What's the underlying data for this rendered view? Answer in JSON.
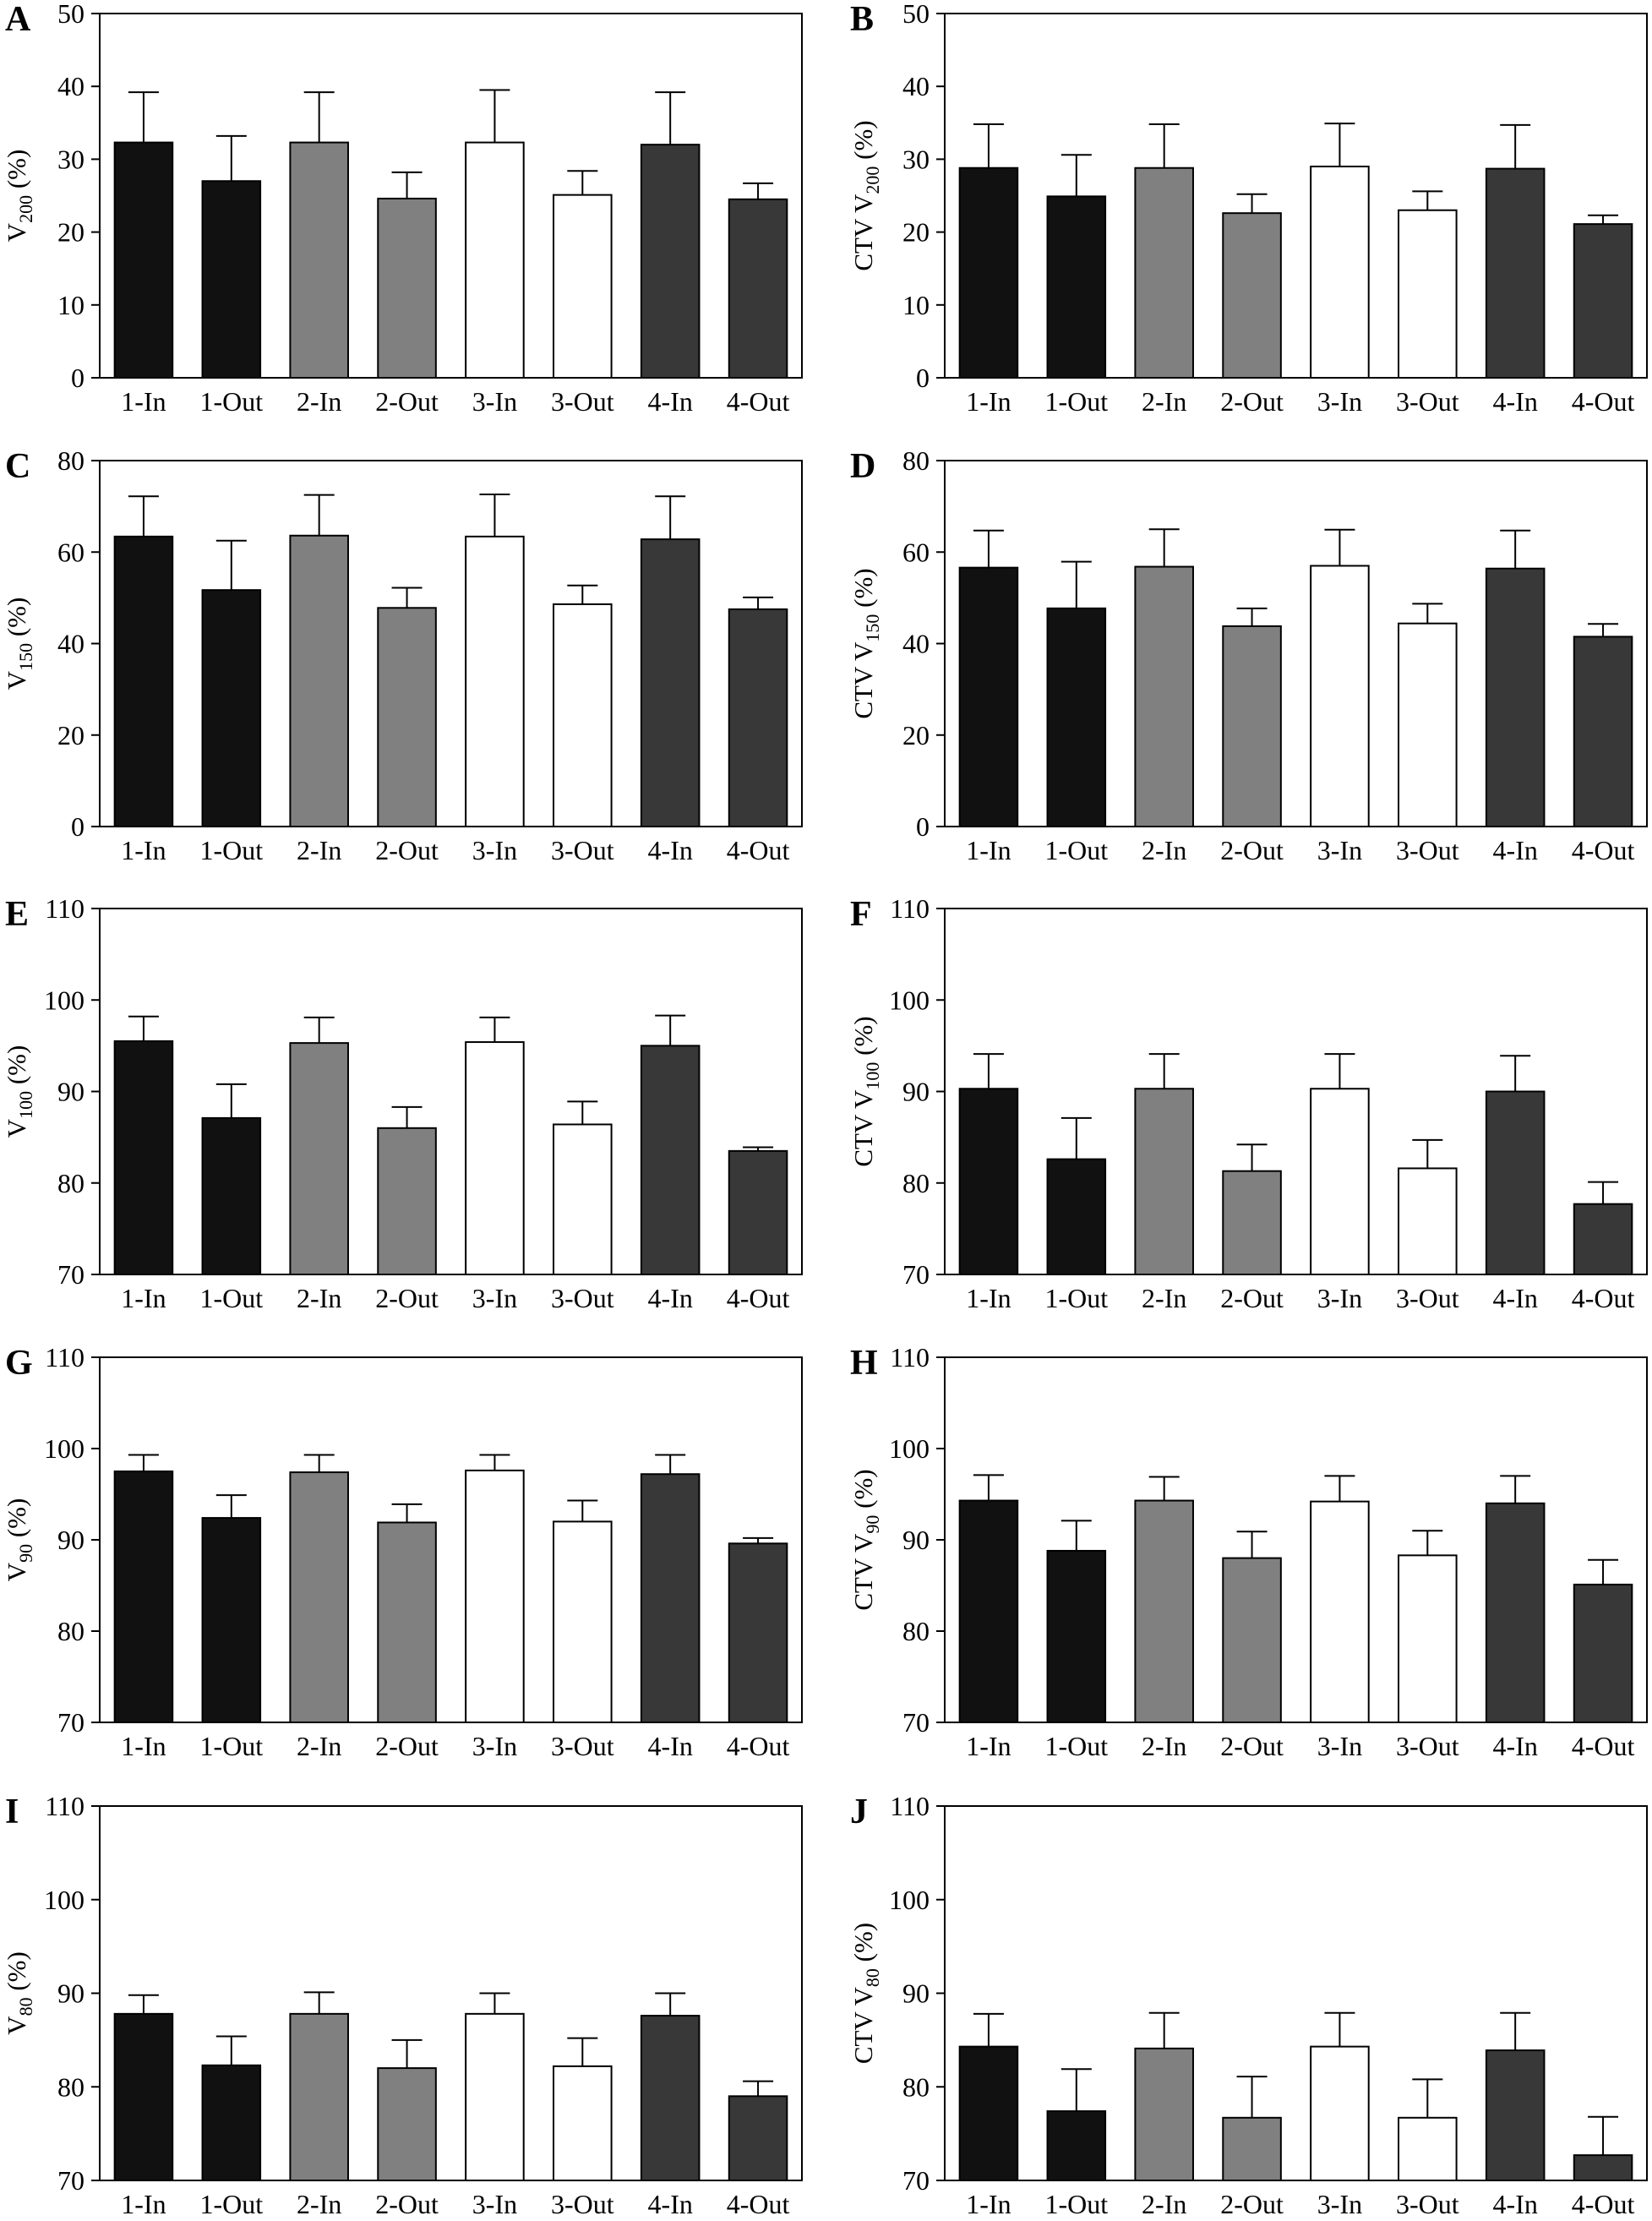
{
  "colors": {
    "series_fill": [
      "#111111",
      "#111111",
      "#808080",
      "#808080",
      "#ffffff",
      "#ffffff",
      "#383838",
      "#383838"
    ]
  },
  "chart_data": [
    {
      "panel": "A",
      "type": "bar",
      "ylabel_main": "V",
      "ylabel_sub": "200",
      "ylabel_suffix": " (%)",
      "ylim": [
        0,
        50
      ],
      "yticks": [
        0,
        10,
        20,
        30,
        40,
        50
      ],
      "categories": [
        "1-In",
        "1-Out",
        "2-In",
        "2-Out",
        "3-In",
        "3-Out",
        "4-In",
        "4-Out"
      ],
      "values": [
        32.3,
        27.0,
        32.3,
        24.6,
        32.3,
        25.1,
        32.0,
        24.5
      ],
      "errors": [
        6.9,
        6.2,
        6.9,
        3.6,
        7.2,
        3.3,
        7.2,
        2.2
      ]
    },
    {
      "panel": "B",
      "type": "bar",
      "ylabel_main": "CTV V",
      "ylabel_sub": "200",
      "ylabel_suffix": " (%)",
      "ylim": [
        0,
        50
      ],
      "yticks": [
        0,
        10,
        20,
        30,
        40,
        50
      ],
      "categories": [
        "1-In",
        "1-Out",
        "2-In",
        "2-Out",
        "3-In",
        "3-Out",
        "4-In",
        "4-Out"
      ],
      "values": [
        28.8,
        24.9,
        28.8,
        22.6,
        29.0,
        23.0,
        28.7,
        21.1
      ],
      "errors": [
        6.0,
        5.7,
        6.0,
        2.6,
        5.9,
        2.6,
        6.0,
        1.2
      ]
    },
    {
      "panel": "C",
      "type": "bar",
      "ylabel_main": "V",
      "ylabel_sub": "150",
      "ylabel_suffix": " (%)",
      "ylim": [
        0,
        80
      ],
      "yticks": [
        0,
        20,
        40,
        60,
        80
      ],
      "categories": [
        "1-In",
        "1-Out",
        "2-In",
        "2-Out",
        "3-In",
        "3-Out",
        "4-In",
        "4-Out"
      ],
      "values": [
        63.4,
        51.7,
        63.6,
        47.8,
        63.4,
        48.6,
        62.8,
        47.5
      ],
      "errors": [
        8.8,
        10.8,
        8.9,
        4.4,
        9.2,
        4.1,
        9.4,
        2.6
      ]
    },
    {
      "panel": "D",
      "type": "bar",
      "ylabel_main": "CTV V",
      "ylabel_sub": "150",
      "ylabel_suffix": " (%)",
      "ylim": [
        0,
        80
      ],
      "yticks": [
        0,
        20,
        40,
        60,
        80
      ],
      "categories": [
        "1-In",
        "1-Out",
        "2-In",
        "2-Out",
        "3-In",
        "3-Out",
        "4-In",
        "4-Out"
      ],
      "values": [
        56.6,
        47.7,
        56.8,
        43.8,
        57.0,
        44.4,
        56.4,
        41.5
      ],
      "errors": [
        8.1,
        10.2,
        8.2,
        3.9,
        7.9,
        4.3,
        8.3,
        2.8
      ]
    },
    {
      "panel": "E",
      "type": "bar",
      "ylabel_main": "V",
      "ylabel_sub": "100",
      "ylabel_suffix": " (%)",
      "ylim": [
        70,
        110
      ],
      "yticks": [
        70,
        80,
        90,
        100,
        110
      ],
      "categories": [
        "1-In",
        "1-Out",
        "2-In",
        "2-Out",
        "3-In",
        "3-Out",
        "4-In",
        "4-Out"
      ],
      "values": [
        95.5,
        87.1,
        95.3,
        86.0,
        95.4,
        86.4,
        95.0,
        83.5
      ],
      "errors": [
        2.7,
        3.7,
        2.8,
        2.3,
        2.7,
        2.5,
        3.3,
        0.4
      ]
    },
    {
      "panel": "F",
      "type": "bar",
      "ylabel_main": "CTV V",
      "ylabel_sub": "100",
      "ylabel_suffix": " (%)",
      "ylim": [
        70,
        110
      ],
      "yticks": [
        70,
        80,
        90,
        100,
        110
      ],
      "categories": [
        "1-In",
        "1-Out",
        "2-In",
        "2-Out",
        "3-In",
        "3-Out",
        "4-In",
        "4-Out"
      ],
      "values": [
        90.3,
        82.6,
        90.3,
        81.3,
        90.3,
        81.6,
        90.0,
        77.7
      ],
      "errors": [
        3.8,
        4.5,
        3.8,
        2.9,
        3.8,
        3.1,
        3.9,
        2.4
      ]
    },
    {
      "panel": "G",
      "type": "bar",
      "ylabel_main": "V",
      "ylabel_sub": "90",
      "ylabel_suffix": " (%)",
      "ylim": [
        70,
        110
      ],
      "yticks": [
        70,
        80,
        90,
        100,
        110
      ],
      "categories": [
        "1-In",
        "1-Out",
        "2-In",
        "2-Out",
        "3-In",
        "3-Out",
        "4-In",
        "4-Out"
      ],
      "values": [
        97.5,
        92.4,
        97.4,
        91.9,
        97.6,
        92.0,
        97.2,
        89.6
      ],
      "errors": [
        1.8,
        2.5,
        1.9,
        2.0,
        1.7,
        2.3,
        2.1,
        0.6
      ]
    },
    {
      "panel": "H",
      "type": "bar",
      "ylabel_main": "CTV V",
      "ylabel_sub": "90",
      "ylabel_suffix": " (%)",
      "ylim": [
        70,
        110
      ],
      "yticks": [
        70,
        80,
        90,
        100,
        110
      ],
      "categories": [
        "1-In",
        "1-Out",
        "2-In",
        "2-Out",
        "3-In",
        "3-Out",
        "4-In",
        "4-Out"
      ],
      "values": [
        94.3,
        88.8,
        94.3,
        88.0,
        94.2,
        88.3,
        94.0,
        85.1
      ],
      "errors": [
        2.8,
        3.3,
        2.6,
        2.9,
        2.8,
        2.7,
        3.0,
        2.7
      ]
    },
    {
      "panel": "I",
      "type": "bar",
      "ylabel_main": "V",
      "ylabel_sub": "80",
      "ylabel_suffix": " (%)",
      "ylim": [
        70,
        110
      ],
      "yticks": [
        70,
        80,
        90,
        100,
        110
      ],
      "categories": [
        "1-In",
        "1-Out",
        "2-In",
        "2-Out",
        "3-In",
        "3-Out",
        "4-In",
        "4-Out"
      ],
      "values": [
        87.8,
        82.3,
        87.8,
        82.0,
        87.8,
        82.2,
        87.6,
        79.0
      ],
      "errors": [
        2.0,
        3.1,
        2.3,
        3.0,
        2.2,
        3.0,
        2.4,
        1.6
      ]
    },
    {
      "panel": "J",
      "type": "bar",
      "ylabel_main": "CTV V",
      "ylabel_sub": "80",
      "ylabel_suffix": " (%)",
      "ylim": [
        70,
        110
      ],
      "yticks": [
        70,
        80,
        90,
        100,
        110
      ],
      "categories": [
        "1-In",
        "1-Out",
        "2-In",
        "2-Out",
        "3-In",
        "3-Out",
        "4-In",
        "4-Out"
      ],
      "values": [
        84.3,
        77.4,
        84.1,
        76.7,
        84.3,
        76.7,
        83.9,
        72.7
      ],
      "errors": [
        3.5,
        4.5,
        3.8,
        4.4,
        3.6,
        4.1,
        4.0,
        4.1
      ]
    }
  ]
}
